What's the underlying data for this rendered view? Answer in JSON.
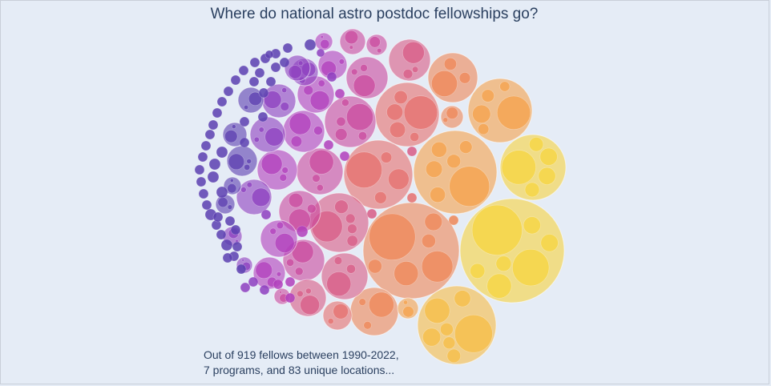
{
  "chart_data": {
    "type": "circle-packing",
    "title": "Where do national astro postdoc fellowships go?",
    "annotation_lines": [
      "Out of 919 fellows between 1990-2022,",
      "7 programs, and 83 unique locations..."
    ],
    "totals": {
      "fellows": 919,
      "years": "1990-2022",
      "programs": 7,
      "locations": 83
    },
    "colorscale": [
      "#5c3fb0",
      "#8e3fbf",
      "#b23fbc",
      "#c94a9e",
      "#d85c86",
      "#e6706e",
      "#ef8757",
      "#f5a24b",
      "#f7bd46",
      "#f7d43f"
    ]
  }
}
